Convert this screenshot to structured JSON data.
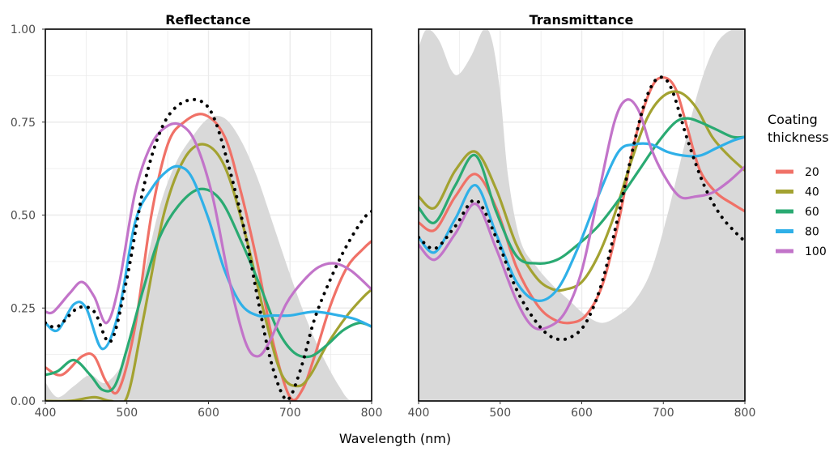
{
  "chart_data": [
    {
      "type": "line",
      "title": "Reflectance",
      "xlabel": "Wavelength (nm)",
      "ylabel": "",
      "xlim": [
        400,
        800
      ],
      "ylim": [
        0,
        1
      ],
      "xticks": [
        "400",
        "500",
        "600",
        "700",
        "800"
      ],
      "yticks": [
        "0.00",
        "0.25",
        "0.50",
        "0.75",
        "1.00"
      ],
      "grid": true,
      "background_area": {
        "color": "#d9d9d9",
        "x": [
          400,
          415,
          435,
          455,
          475,
          500,
          520,
          540,
          560,
          580,
          600,
          620,
          640,
          660,
          680,
          700,
          720,
          740,
          760,
          775,
          800
        ],
        "y": [
          0.05,
          0.01,
          0.04,
          0.07,
          0.05,
          0.13,
          0.33,
          0.52,
          0.64,
          0.71,
          0.76,
          0.76,
          0.7,
          0.6,
          0.47,
          0.34,
          0.22,
          0.12,
          0.04,
          0.0,
          0.0
        ]
      },
      "series": [
        {
          "name": "20",
          "color": "#f07167",
          "dash": false,
          "x": [
            400,
            420,
            445,
            460,
            475,
            490,
            510,
            530,
            550,
            570,
            595,
            620,
            640,
            660,
            680,
            700,
            715,
            730,
            750,
            770,
            790,
            800
          ],
          "y": [
            0.09,
            0.07,
            0.12,
            0.12,
            0.05,
            0.03,
            0.2,
            0.5,
            0.69,
            0.75,
            0.77,
            0.71,
            0.56,
            0.37,
            0.15,
            0.01,
            0.03,
            0.12,
            0.26,
            0.36,
            0.41,
            0.43
          ]
        },
        {
          "name": "40",
          "color": "#a3a231",
          "dash": false,
          "x": [
            400,
            430,
            460,
            480,
            500,
            520,
            545,
            570,
            595,
            620,
            645,
            670,
            690,
            710,
            725,
            745,
            770,
            790,
            800
          ],
          "y": [
            0.0,
            0.0,
            0.01,
            0.0,
            0.01,
            0.22,
            0.5,
            0.65,
            0.69,
            0.63,
            0.45,
            0.22,
            0.07,
            0.04,
            0.07,
            0.15,
            0.23,
            0.28,
            0.3
          ]
        },
        {
          "name": "60",
          "color": "#2aaa72",
          "dash": false,
          "x": [
            400,
            415,
            435,
            455,
            470,
            485,
            500,
            520,
            540,
            565,
            590,
            615,
            640,
            665,
            685,
            705,
            725,
            745,
            765,
            785,
            800
          ],
          "y": [
            0.07,
            0.08,
            0.11,
            0.07,
            0.03,
            0.04,
            0.14,
            0.3,
            0.44,
            0.53,
            0.57,
            0.54,
            0.43,
            0.3,
            0.19,
            0.13,
            0.12,
            0.15,
            0.19,
            0.21,
            0.2
          ]
        },
        {
          "name": "80",
          "color": "#2fb0e8",
          "dash": false,
          "x": [
            400,
            415,
            435,
            450,
            470,
            490,
            510,
            530,
            550,
            565,
            580,
            600,
            620,
            640,
            660,
            680,
            700,
            730,
            760,
            780,
            800
          ],
          "y": [
            0.21,
            0.19,
            0.26,
            0.25,
            0.14,
            0.24,
            0.48,
            0.57,
            0.62,
            0.63,
            0.6,
            0.49,
            0.35,
            0.26,
            0.23,
            0.23,
            0.23,
            0.24,
            0.23,
            0.22,
            0.2
          ]
        },
        {
          "name": "100",
          "color": "#c274c9",
          "dash": false,
          "x": [
            400,
            410,
            430,
            445,
            460,
            475,
            490,
            510,
            530,
            550,
            568,
            585,
            605,
            625,
            645,
            660,
            675,
            695,
            715,
            735,
            755,
            775,
            800
          ],
          "y": [
            0.24,
            0.24,
            0.29,
            0.32,
            0.28,
            0.21,
            0.31,
            0.56,
            0.69,
            0.74,
            0.74,
            0.69,
            0.55,
            0.33,
            0.16,
            0.12,
            0.16,
            0.26,
            0.32,
            0.36,
            0.37,
            0.35,
            0.3
          ]
        },
        {
          "name": "",
          "color": "#000000",
          "dash": true,
          "x": [
            400,
            415,
            440,
            460,
            480,
            500,
            520,
            540,
            560,
            585,
            605,
            625,
            645,
            660,
            675,
            690,
            700,
            715,
            730,
            750,
            770,
            790,
            800
          ],
          "y": [
            0.21,
            0.2,
            0.25,
            0.24,
            0.16,
            0.33,
            0.57,
            0.72,
            0.79,
            0.81,
            0.77,
            0.63,
            0.45,
            0.28,
            0.12,
            0.02,
            0.01,
            0.1,
            0.22,
            0.33,
            0.42,
            0.49,
            0.51
          ]
        }
      ]
    },
    {
      "type": "line",
      "title": "Transmittance",
      "xlabel": "Wavelength (nm)",
      "ylabel": "",
      "xlim": [
        400,
        800
      ],
      "ylim": [
        0,
        1
      ],
      "xticks": [
        "400",
        "500",
        "600",
        "700",
        "800"
      ],
      "yticks": [],
      "grid": true,
      "background_area": {
        "color": "#d9d9d9",
        "x": [
          400,
          410,
          425,
          440,
          450,
          465,
          480,
          490,
          500,
          510,
          525,
          545,
          565,
          585,
          605,
          625,
          645,
          665,
          685,
          705,
          725,
          745,
          765,
          785,
          800
        ],
        "y": [
          0.95,
          1.0,
          0.97,
          0.89,
          0.88,
          0.93,
          1.0,
          0.97,
          0.83,
          0.6,
          0.43,
          0.36,
          0.31,
          0.27,
          0.23,
          0.21,
          0.23,
          0.27,
          0.35,
          0.5,
          0.68,
          0.85,
          0.96,
          1.0,
          1.0
        ]
      },
      "series": [
        {
          "name": "20",
          "color": "#f07167",
          "dash": false,
          "x": [
            400,
            420,
            445,
            470,
            495,
            520,
            545,
            565,
            585,
            605,
            625,
            645,
            665,
            685,
            700,
            715,
            730,
            745,
            765,
            785,
            800
          ],
          "y": [
            0.48,
            0.46,
            0.55,
            0.61,
            0.52,
            0.36,
            0.26,
            0.22,
            0.21,
            0.23,
            0.31,
            0.48,
            0.7,
            0.84,
            0.87,
            0.84,
            0.73,
            0.62,
            0.56,
            0.53,
            0.51
          ]
        },
        {
          "name": "40",
          "color": "#a3a231",
          "dash": false,
          "x": [
            400,
            420,
            445,
            470,
            495,
            520,
            545,
            565,
            580,
            600,
            620,
            640,
            660,
            680,
            700,
            720,
            740,
            760,
            780,
            800
          ],
          "y": [
            0.55,
            0.52,
            0.62,
            0.67,
            0.57,
            0.42,
            0.33,
            0.3,
            0.3,
            0.32,
            0.39,
            0.5,
            0.64,
            0.76,
            0.82,
            0.83,
            0.79,
            0.71,
            0.66,
            0.62
          ]
        },
        {
          "name": "60",
          "color": "#2aaa72",
          "dash": false,
          "x": [
            400,
            420,
            445,
            470,
            495,
            520,
            545,
            570,
            595,
            620,
            645,
            670,
            695,
            715,
            730,
            745,
            765,
            785,
            800
          ],
          "y": [
            0.52,
            0.48,
            0.58,
            0.66,
            0.51,
            0.39,
            0.37,
            0.38,
            0.42,
            0.47,
            0.54,
            0.62,
            0.7,
            0.75,
            0.76,
            0.75,
            0.73,
            0.71,
            0.71
          ]
        },
        {
          "name": "80",
          "color": "#2fb0e8",
          "dash": false,
          "x": [
            400,
            420,
            445,
            470,
            495,
            520,
            545,
            570,
            595,
            620,
            645,
            665,
            685,
            705,
            725,
            745,
            765,
            785,
            800
          ],
          "y": [
            0.44,
            0.4,
            0.49,
            0.58,
            0.45,
            0.32,
            0.27,
            0.3,
            0.41,
            0.55,
            0.67,
            0.69,
            0.69,
            0.67,
            0.66,
            0.66,
            0.68,
            0.7,
            0.71
          ]
        },
        {
          "name": "100",
          "color": "#c274c9",
          "dash": false,
          "x": [
            400,
            420,
            445,
            470,
            495,
            520,
            540,
            560,
            580,
            600,
            620,
            640,
            655,
            670,
            685,
            700,
            720,
            740,
            760,
            780,
            800
          ],
          "y": [
            0.42,
            0.38,
            0.45,
            0.53,
            0.41,
            0.27,
            0.2,
            0.2,
            0.24,
            0.35,
            0.55,
            0.75,
            0.81,
            0.78,
            0.68,
            0.61,
            0.55,
            0.55,
            0.56,
            0.59,
            0.63
          ]
        },
        {
          "name": "",
          "color": "#000000",
          "dash": true,
          "x": [
            400,
            420,
            445,
            470,
            495,
            520,
            545,
            565,
            585,
            605,
            625,
            645,
            665,
            680,
            695,
            710,
            730,
            750,
            770,
            790,
            800
          ],
          "y": [
            0.44,
            0.41,
            0.47,
            0.54,
            0.44,
            0.3,
            0.21,
            0.17,
            0.17,
            0.21,
            0.32,
            0.5,
            0.7,
            0.82,
            0.87,
            0.84,
            0.7,
            0.58,
            0.5,
            0.45,
            0.43
          ]
        }
      ]
    }
  ],
  "shared_xlabel": "Wavelength (nm)",
  "legend": {
    "title_line1": "Coating",
    "title_line2": "thickness",
    "items": [
      {
        "label": "20",
        "color": "#f07167"
      },
      {
        "label": "40",
        "color": "#a3a231"
      },
      {
        "label": "60",
        "color": "#2aaa72"
      },
      {
        "label": "80",
        "color": "#2fb0e8"
      },
      {
        "label": "100",
        "color": "#c274c9"
      }
    ]
  }
}
